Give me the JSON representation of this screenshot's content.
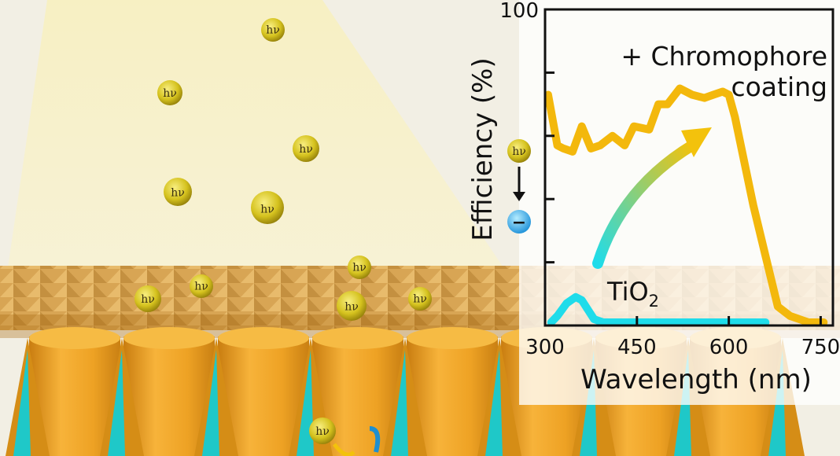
{
  "illustration": {
    "photon_symbol": "hν",
    "electron_symbol": "−",
    "photon_count": 14
  },
  "colors": {
    "chromophore": "#f3b80c",
    "tio2": "#1fdcea",
    "cone_orange": "#efa21f",
    "cone_teal": "#1fc8c8",
    "light_beam": "#f7f0c0"
  },
  "chart_data": {
    "type": "line",
    "title": "",
    "xlabel": "Wavelength (nm)",
    "ylabel": "Efficiency (%)",
    "xlim": [
      300,
      770
    ],
    "ylim": [
      0,
      100
    ],
    "x_ticks": [
      300,
      450,
      600,
      750
    ],
    "y_ticks": [
      0,
      20,
      40,
      60,
      80,
      100
    ],
    "y_tick_labels": [
      "",
      "",
      "",
      "",
      "",
      "100"
    ],
    "grid": false,
    "series": [
      {
        "name": "+ Chromophore coating",
        "color": "#f3b80c",
        "x": [
          305,
          320,
          330,
          345,
          360,
          375,
          390,
          410,
          430,
          445,
          470,
          485,
          500,
          520,
          540,
          560,
          575,
          590,
          600,
          610,
          625,
          640,
          660,
          680,
          700,
          730,
          755
        ],
        "y": [
          73,
          57,
          56,
          55,
          63,
          56,
          57,
          60,
          57,
          63,
          62,
          70,
          70,
          75,
          73,
          72,
          73,
          74,
          73,
          66,
          52,
          38,
          22,
          6,
          3,
          1,
          1
        ]
      },
      {
        "name": "TiO2",
        "color": "#1fdcea",
        "x": [
          310,
          320,
          335,
          350,
          360,
          370,
          380,
          395,
          420,
          500,
          600,
          660
        ],
        "y": [
          1,
          3,
          7,
          9,
          8,
          5,
          2,
          1,
          1,
          1,
          1,
          1
        ]
      }
    ],
    "annotations": [
      {
        "line1": "+ Chromophore",
        "line2": "coating"
      },
      {
        "base": "TiO",
        "subscript": "2"
      }
    ]
  }
}
